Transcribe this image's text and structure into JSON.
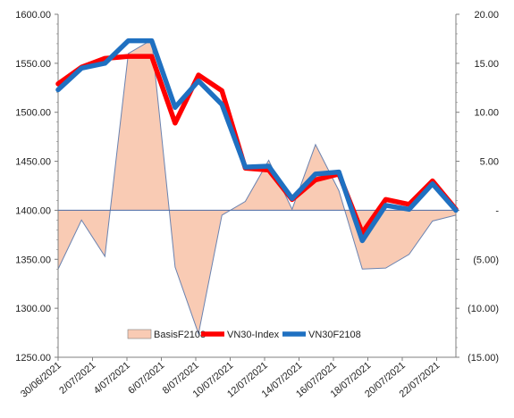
{
  "chart_data": {
    "type": "line",
    "x": [
      "30/06/2021",
      "01/07/2021",
      "02/07/2021",
      "05/07/2021",
      "06/07/2021",
      "07/07/2021",
      "08/07/2021",
      "09/07/2021",
      "12/07/2021",
      "13/07/2021",
      "14/07/2021",
      "15/07/2021",
      "16/07/2021",
      "19/07/2021",
      "20/07/2021",
      "21/07/2021",
      "22/07/2021",
      "23/07/2021"
    ],
    "x_tick_labels": [
      "30/06/2021",
      "2/07/2021",
      "4/07/2021",
      "6/07/2021",
      "8/07/2021",
      "10/07/2021",
      "12/07/2021",
      "14/07/2021",
      "16/07/2021",
      "18/07/2021",
      "20/07/2021",
      "22/07/2021"
    ],
    "y_left": {
      "lim": [
        1250,
        1600
      ],
      "ticks": [
        "1250.00",
        "1300.00",
        "1350.00",
        "1400.00",
        "1450.00",
        "1500.00",
        "1550.00",
        "1600.00"
      ]
    },
    "y_right": {
      "lim": [
        -15,
        20
      ],
      "ticks": [
        "(15.00)",
        "(10.00)",
        "(5.00)",
        "-",
        "5.00",
        "10.00",
        "15.00",
        "20.00"
      ]
    },
    "series": [
      {
        "name": "BasisF2108",
        "type": "area",
        "axis": "right",
        "color": "#f9cbb4",
        "values": [
          -6.0,
          -1.0,
          -4.7,
          16.0,
          17.4,
          -5.8,
          -12.6,
          -0.5,
          0.9,
          5.1,
          0.1,
          6.7,
          2.0,
          -6.0,
          -5.9,
          -4.5,
          -1.1,
          -0.5
        ]
      },
      {
        "name": "VN30-Index",
        "type": "line",
        "axis": "left",
        "color": "#ff0000",
        "values": [
          1529,
          1546,
          1555,
          1557,
          1557,
          1489,
          1538,
          1522,
          1443,
          1441,
          1411,
          1431,
          1437,
          1377,
          1411,
          1406,
          1430,
          1401
        ]
      },
      {
        "name": "VN30F2108",
        "type": "line",
        "axis": "left",
        "color": "#1f70c1",
        "values": [
          1523,
          1545,
          1550,
          1573,
          1573,
          1505,
          1532,
          1508,
          1444,
          1445,
          1412,
          1437,
          1439,
          1369,
          1405,
          1401,
          1427,
          1400
        ]
      }
    ],
    "legend_position": "bottom-center",
    "grid": false
  }
}
